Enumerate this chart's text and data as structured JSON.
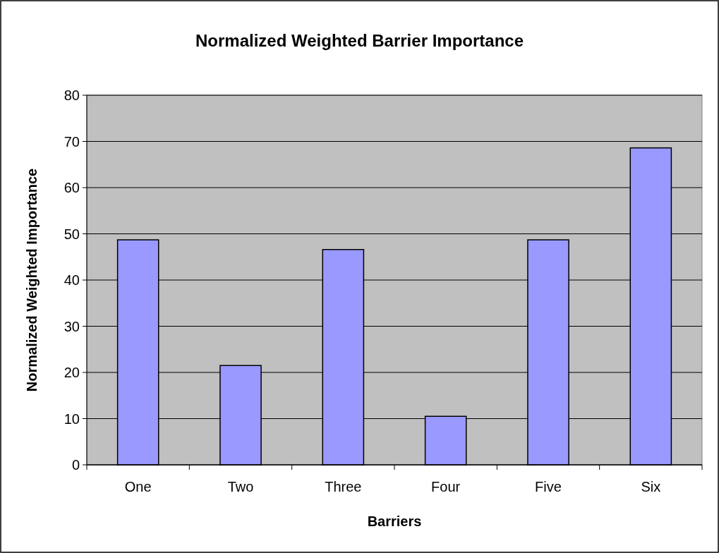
{
  "chart_data": {
    "type": "bar",
    "title": "Normalized Weighted Barrier Importance",
    "xlabel": "Barriers",
    "ylabel": "Normalized Weighted Importance",
    "categories": [
      "One",
      "Two",
      "Three",
      "Four",
      "Five",
      "Six"
    ],
    "values": [
      48.7,
      21.5,
      46.6,
      10.5,
      48.7,
      68.6
    ],
    "color": "#9999ff",
    "ylim": [
      0,
      80
    ],
    "yticks": [
      0,
      10,
      20,
      30,
      40,
      50,
      60,
      70,
      80
    ],
    "grid": "y"
  }
}
